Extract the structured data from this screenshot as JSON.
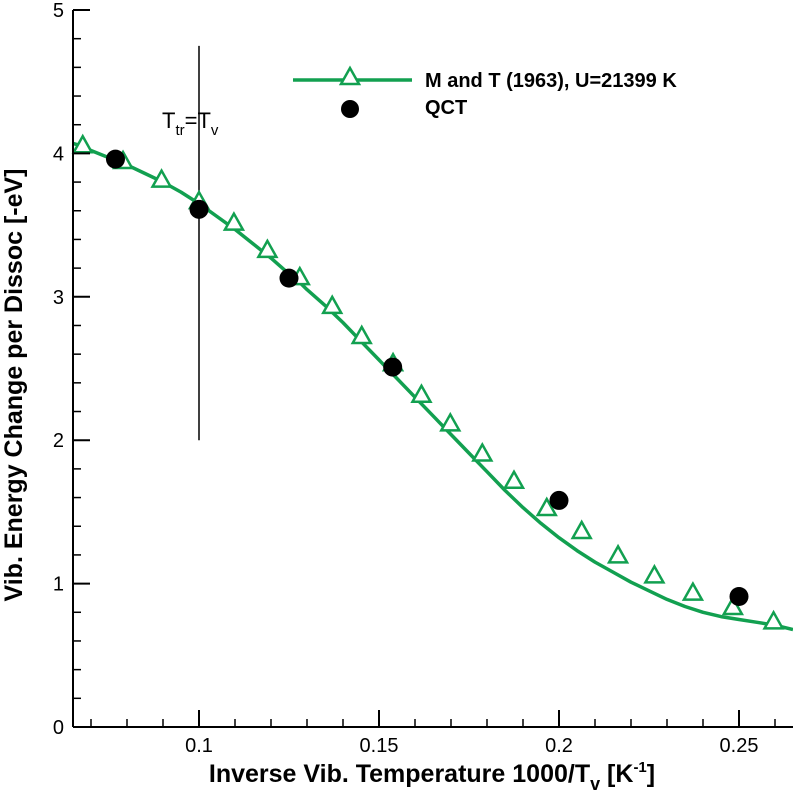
{
  "chart_data": {
    "type": "line",
    "title": "",
    "xlabel": "Inverse Vib. Temperature 1000/T",
    "xlabel_sub": "v",
    "xlabel_unit_pre": " [K",
    "xlabel_unit_sup": "-1",
    "xlabel_unit_post": "]",
    "ylabel": "Vib. Energy Change per Dissoc [-eV]",
    "xlim": [
      0.065,
      0.265
    ],
    "ylim": [
      0,
      5
    ],
    "x_ticks": [
      0.1,
      0.15,
      0.2,
      0.25
    ],
    "x_tick_labels": [
      "0.1",
      "0.15",
      "0.2",
      "0.25"
    ],
    "y_ticks": [
      0,
      1,
      2,
      3,
      4,
      5
    ],
    "y_tick_labels": [
      "0",
      "1",
      "2",
      "3",
      "4",
      "5"
    ],
    "grid": false,
    "legend_position": "top-right",
    "series": [
      {
        "name": "M and T (1963), U=21399 K",
        "style": "line-with-open-triangles",
        "color": "#12a050",
        "x": [
          0.065,
          0.0677,
          0.07,
          0.075,
          0.08,
          0.085,
          0.09,
          0.095,
          0.1,
          0.105,
          0.11,
          0.115,
          0.12,
          0.125,
          0.128,
          0.13,
          0.135,
          0.14,
          0.145,
          0.15,
          0.155,
          0.16,
          0.165,
          0.17,
          0.175,
          0.18,
          0.185,
          0.19,
          0.195,
          0.2,
          0.205,
          0.21,
          0.215,
          0.22,
          0.225,
          0.23,
          0.235,
          0.24,
          0.245,
          0.25,
          0.255,
          0.26,
          0.265
        ],
        "y": [
          4.07,
          4.05,
          4.02,
          3.97,
          3.92,
          3.86,
          3.8,
          3.73,
          3.65,
          3.56,
          3.47,
          3.37,
          3.27,
          3.16,
          3.1,
          3.05,
          2.94,
          2.82,
          2.69,
          2.56,
          2.43,
          2.3,
          2.17,
          2.04,
          1.91,
          1.78,
          1.65,
          1.53,
          1.42,
          1.32,
          1.23,
          1.15,
          1.08,
          1.01,
          0.95,
          0.89,
          0.84,
          0.8,
          0.77,
          0.75,
          0.73,
          0.71,
          0.68
        ],
        "marker_x": [
          0.0677,
          0.0789,
          0.0896,
          0.1,
          0.1097,
          0.119,
          0.128,
          0.137,
          0.1452,
          0.1539,
          0.1618,
          0.1698,
          0.1787,
          0.1875,
          0.1966,
          0.2063,
          0.2164,
          0.2265,
          0.2372,
          0.2483,
          0.2596
        ],
        "marker_y": [
          4.05,
          3.94,
          3.81,
          3.66,
          3.51,
          3.32,
          3.13,
          2.93,
          2.72,
          2.53,
          2.31,
          2.11,
          1.9,
          1.71,
          1.52,
          1.36,
          1.19,
          1.05,
          0.93,
          0.83,
          0.73
        ]
      },
      {
        "name": "QCT",
        "style": "filled-circles-with-error-bars",
        "color": "#000000",
        "x": [
          0.0768,
          0.1,
          0.125,
          0.1538,
          0.2,
          0.25
        ],
        "y": [
          3.96,
          3.61,
          3.13,
          2.51,
          1.58,
          0.91
        ],
        "x_err": [
          0.0015,
          0.0015,
          0.0015,
          0.0015,
          0.0015,
          0.0015
        ]
      }
    ],
    "annotations": [
      {
        "text_main": "T",
        "text_sub": "tr",
        "text_eq": "=T",
        "text_sub2": "v",
        "x": 0.1,
        "y_from": 2.0,
        "y_to": 4.75
      }
    ]
  }
}
